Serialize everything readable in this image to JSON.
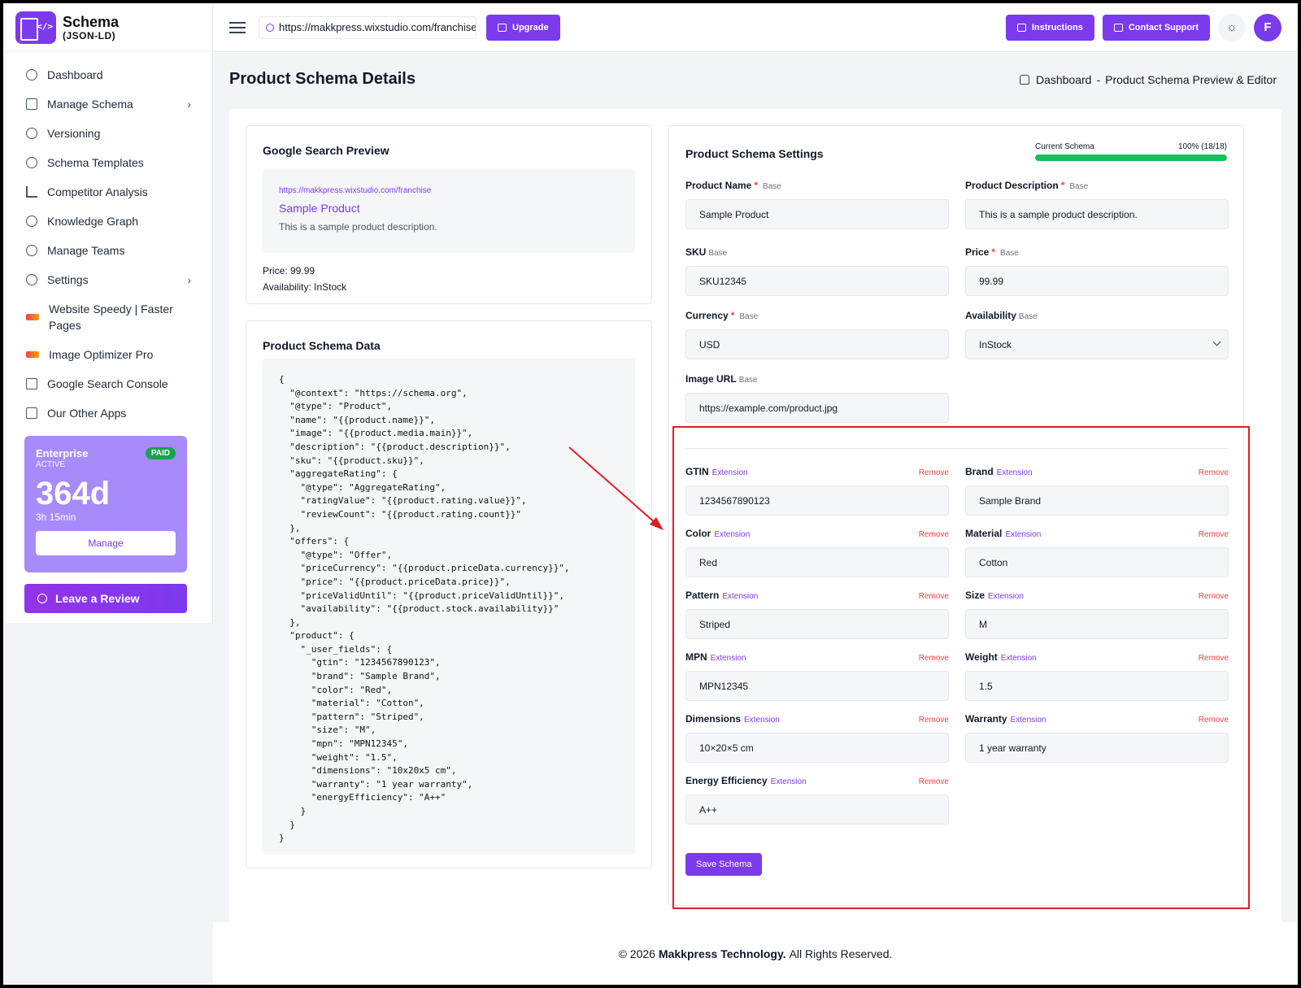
{
  "app": {
    "logo_title": "Schema",
    "logo_sub": "(JSON-LD)"
  },
  "sidebar": {
    "items": [
      {
        "label": "Dashboard",
        "icon": "home-icon"
      },
      {
        "label": "Manage Schema",
        "icon": "schema-icon"
      },
      {
        "label": "Versioning",
        "icon": "history-icon"
      },
      {
        "label": "Schema Templates",
        "icon": "palette-icon"
      },
      {
        "label": "Competitor Analysis",
        "icon": "bar-chart-icon"
      },
      {
        "label": "Knowledge Graph",
        "icon": "graph-icon"
      },
      {
        "label": "Manage Teams",
        "icon": "team-icon"
      },
      {
        "label": "Settings",
        "icon": "gear-icon"
      },
      {
        "label": "Website Speedy | Faster Pages",
        "icon": "speedy-logo-icon"
      },
      {
        "label": "Image Optimizer Pro",
        "icon": "optimizer-logo-icon"
      },
      {
        "label": "Google Search Console",
        "icon": "search-console-icon"
      },
      {
        "label": "Our Other Apps",
        "icon": "apps-grid-icon"
      }
    ],
    "plan": {
      "name": "Enterprise",
      "status": "ACTIVE",
      "badge": "PAID",
      "days": "364d",
      "time": "3h 15min",
      "manage_label": "Manage"
    },
    "review_label": "Leave a Review"
  },
  "header": {
    "url": "https://makkpress.wixstudio.com/franchise",
    "upgrade_label": "Upgrade",
    "instructions_label": "Instructions",
    "support_label": "Contact Support",
    "theme_icon": "sun-icon",
    "avatar_letter": "F"
  },
  "page": {
    "title": "Product Schema Details",
    "breadcrumb": {
      "home": "Dashboard",
      "separator": "-",
      "current": "Product Schema Preview & Editor"
    }
  },
  "preview": {
    "title": "Google Search Preview",
    "url": "https://makkpress.wixstudio.com/franchise",
    "product_title": "Sample Product",
    "description": "This is a sample product description.",
    "price_line": "Price: 99.99",
    "availability_line": "Availability: InStock"
  },
  "schema_data": {
    "title": "Product Schema Data",
    "code": "{\n  \"@context\": \"https://schema.org\",\n  \"@type\": \"Product\",\n  \"name\": \"{{product.name}}\",\n  \"image\": \"{{product.media.main}}\",\n  \"description\": \"{{product.description}}\",\n  \"sku\": \"{{product.sku}}\",\n  \"aggregateRating\": {\n    \"@type\": \"AggregateRating\",\n    \"ratingValue\": \"{{product.rating.value}}\",\n    \"reviewCount\": \"{{product.rating.count}}\"\n  },\n  \"offers\": {\n    \"@type\": \"Offer\",\n    \"priceCurrency\": \"{{product.priceData.currency}}\",\n    \"price\": \"{{product.priceData.price}}\",\n    \"priceValidUntil\": \"{{product.priceValidUntil}}\",\n    \"availability\": \"{{product.stock.availability}}\"\n  },\n  \"product\": {\n    \"_user_fields\": {\n      \"gtin\": \"1234567890123\",\n      \"brand\": \"Sample Brand\",\n      \"color\": \"Red\",\n      \"material\": \"Cotton\",\n      \"pattern\": \"Striped\",\n      \"size\": \"M\",\n      \"mpn\": \"MPN12345\",\n      \"weight\": \"1.5\",\n      \"dimensions\": \"10x20x5 cm\",\n      \"warranty\": \"1 year warranty\",\n      \"energyEfficiency\": \"A++\"\n    }\n  }\n}"
  },
  "settings": {
    "title": "Product Schema Settings",
    "progress": {
      "label": "Current Schema",
      "value_text": "100% (18/18)",
      "percent": 100
    },
    "tag_base": "Base",
    "tag_extension": "Extension",
    "remove_label": "Remove",
    "base_fields": [
      {
        "label": "Product Name",
        "required": true,
        "value": "Sample Product"
      },
      {
        "label": "Product Description",
        "required": true,
        "value": "This is a sample product description."
      },
      {
        "label": "SKU",
        "required": false,
        "value": "SKU12345"
      },
      {
        "label": "Price",
        "required": true,
        "value": "99.99"
      },
      {
        "label": "Currency",
        "required": true,
        "value": "USD"
      },
      {
        "label": "Availability",
        "required": false,
        "value": "InStock"
      },
      {
        "label": "Image URL",
        "required": false,
        "value": "https://example.com/product.jpg"
      }
    ],
    "extension_fields": [
      {
        "label": "GTIN",
        "value": "1234567890123"
      },
      {
        "label": "Brand",
        "value": "Sample Brand"
      },
      {
        "label": "Color",
        "value": "Red"
      },
      {
        "label": "Material",
        "value": "Cotton"
      },
      {
        "label": "Pattern",
        "value": "Striped"
      },
      {
        "label": "Size",
        "value": "M"
      },
      {
        "label": "MPN",
        "value": "MPN12345"
      },
      {
        "label": "Weight",
        "value": "1.5"
      },
      {
        "label": "Dimensions",
        "value": "10×20×5 cm"
      },
      {
        "label": "Warranty",
        "value": "1 year warranty"
      },
      {
        "label": "Energy Efficiency",
        "value": "A++"
      }
    ],
    "save_label": "Save Schema"
  },
  "footer": {
    "prefix": "© 2026",
    "company": "Makkpress Technology.",
    "suffix": "All Rights Reserved."
  },
  "colors": {
    "accent": "#7c3aed",
    "success": "#16c05a",
    "danger": "#ef4444",
    "annotation": "#e11d24"
  }
}
